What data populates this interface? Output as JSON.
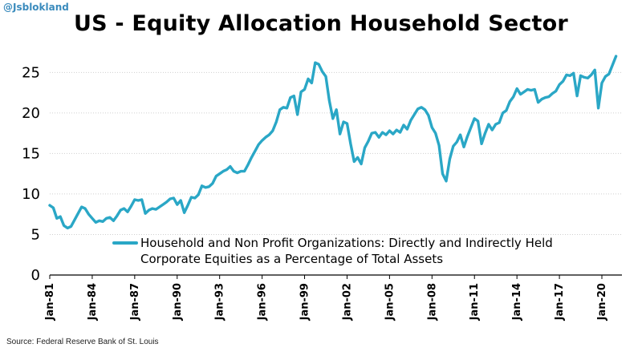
{
  "handle": "@Jsblokland",
  "source": "Source: Federal Reserve Bank of St. Louis",
  "colors": {
    "line": "#2aa7c6",
    "grid": "#cfcfcf",
    "axis": "#000000"
  },
  "chart_data": {
    "type": "line",
    "title": "US - Equity Allocation Household Sector",
    "xlabel": "",
    "ylabel": "",
    "ylim": [
      0,
      28
    ],
    "yticks": [
      0,
      5,
      10,
      15,
      20,
      25
    ],
    "xlim": [
      "1981-01",
      "2021-06"
    ],
    "xtick_labels": [
      "Jan-81",
      "Jan-84",
      "Jan-87",
      "Jan-90",
      "Jan-93",
      "Jan-96",
      "Jan-99",
      "Jan-02",
      "Jan-05",
      "Jan-08",
      "Jan-11",
      "Jan-14",
      "Jan-17",
      "Jan-20"
    ],
    "xtick_years": [
      1981,
      1984,
      1987,
      1990,
      1993,
      1996,
      1999,
      2002,
      2005,
      2008,
      2011,
      2014,
      2017,
      2020
    ],
    "grid": true,
    "legend_position": "center-bottom",
    "series": [
      {
        "name": "Household and Non Profit Organizations: Directly and Indirectly Held Corporate Equities as a Percentage of Total Assets",
        "x": [
          1981.0,
          1981.25,
          1981.5,
          1981.75,
          1982.0,
          1982.25,
          1982.5,
          1982.75,
          1983.0,
          1983.25,
          1983.5,
          1983.75,
          1984.0,
          1984.25,
          1984.5,
          1984.75,
          1985.0,
          1985.25,
          1985.5,
          1985.75,
          1986.0,
          1986.25,
          1986.5,
          1986.75,
          1987.0,
          1987.25,
          1987.5,
          1987.75,
          1988.0,
          1988.25,
          1988.5,
          1988.75,
          1989.0,
          1989.25,
          1989.5,
          1989.75,
          1990.0,
          1990.25,
          1990.5,
          1990.75,
          1991.0,
          1991.25,
          1991.5,
          1991.75,
          1992.0,
          1992.25,
          1992.5,
          1992.75,
          1993.0,
          1993.25,
          1993.5,
          1993.75,
          1994.0,
          1994.25,
          1994.5,
          1994.75,
          1995.0,
          1995.25,
          1995.5,
          1995.75,
          1996.0,
          1996.25,
          1996.5,
          1996.75,
          1997.0,
          1997.25,
          1997.5,
          1997.75,
          1998.0,
          1998.25,
          1998.5,
          1998.75,
          1999.0,
          1999.25,
          1999.5,
          1999.75,
          2000.0,
          2000.25,
          2000.5,
          2000.75,
          2001.0,
          2001.25,
          2001.5,
          2001.75,
          2002.0,
          2002.25,
          2002.5,
          2002.75,
          2003.0,
          2003.25,
          2003.5,
          2003.75,
          2004.0,
          2004.25,
          2004.5,
          2004.75,
          2005.0,
          2005.25,
          2005.5,
          2005.75,
          2006.0,
          2006.25,
          2006.5,
          2006.75,
          2007.0,
          2007.25,
          2007.5,
          2007.75,
          2008.0,
          2008.25,
          2008.5,
          2008.75,
          2009.0,
          2009.25,
          2009.5,
          2009.75,
          2010.0,
          2010.25,
          2010.5,
          2010.75,
          2011.0,
          2011.25,
          2011.5,
          2011.75,
          2012.0,
          2012.25,
          2012.5,
          2012.75,
          2013.0,
          2013.25,
          2013.5,
          2013.75,
          2014.0,
          2014.25,
          2014.5,
          2014.75,
          2015.0,
          2015.25,
          2015.5,
          2015.75,
          2016.0,
          2016.25,
          2016.5,
          2016.75,
          2017.0,
          2017.25,
          2017.5,
          2017.75,
          2018.0,
          2018.25,
          2018.5,
          2018.75,
          2019.0,
          2019.25,
          2019.5,
          2019.75,
          2020.0,
          2020.25,
          2020.5,
          2020.75,
          2021.0
        ],
        "values": [
          8.6,
          8.3,
          7.0,
          7.2,
          6.1,
          5.8,
          6.0,
          6.8,
          7.6,
          8.4,
          8.2,
          7.5,
          7.0,
          6.5,
          6.7,
          6.6,
          7.0,
          7.1,
          6.7,
          7.3,
          8.0,
          8.2,
          7.8,
          8.5,
          9.3,
          9.2,
          9.3,
          7.6,
          8.0,
          8.2,
          8.1,
          8.4,
          8.7,
          9.0,
          9.4,
          9.5,
          8.7,
          9.2,
          7.7,
          8.6,
          9.6,
          9.5,
          9.9,
          11.0,
          10.8,
          10.9,
          11.3,
          12.2,
          12.5,
          12.8,
          13.0,
          13.4,
          12.8,
          12.6,
          12.8,
          12.8,
          13.6,
          14.5,
          15.3,
          16.1,
          16.6,
          17.0,
          17.3,
          17.8,
          18.9,
          20.4,
          20.7,
          20.6,
          21.9,
          22.1,
          19.8,
          22.6,
          22.9,
          24.2,
          23.7,
          26.2,
          26.0,
          25.1,
          24.5,
          21.5,
          19.3,
          20.4,
          17.4,
          18.9,
          18.7,
          16.2,
          14.0,
          14.5,
          13.7,
          15.7,
          16.5,
          17.5,
          17.6,
          17.0,
          17.6,
          17.3,
          17.8,
          17.4,
          17.9,
          17.6,
          18.5,
          18.0,
          19.1,
          19.8,
          20.5,
          20.7,
          20.4,
          19.7,
          18.2,
          17.5,
          16.0,
          12.5,
          11.6,
          14.3,
          15.9,
          16.4,
          17.3,
          15.8,
          17.1,
          18.2,
          19.3,
          19.0,
          16.2,
          17.5,
          18.6,
          17.9,
          18.6,
          18.8,
          20.0,
          20.3,
          21.4,
          22.0,
          23.0,
          22.3,
          22.6,
          22.9,
          22.8,
          22.9,
          21.3,
          21.7,
          21.9,
          22.0,
          22.4,
          22.7,
          23.5,
          23.9,
          24.7,
          24.6,
          24.9,
          22.1,
          24.6,
          24.4,
          24.3,
          24.7,
          25.3,
          20.6,
          23.7,
          24.5,
          24.8,
          25.9,
          27.0
        ]
      }
    ]
  }
}
